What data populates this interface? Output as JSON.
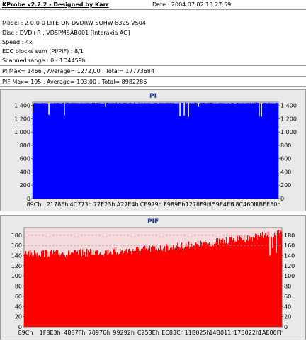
{
  "header": {
    "title": "KProbe v2.2.2 - Designed by Karr",
    "date": "Date : 2004.07.02 13:27:59"
  },
  "info": {
    "model": "Model : 2-0-0-0 LITE-ON DVDRW SOHW-832S  VS04",
    "disc": "Disc : DVD+R , VDSPMSAB001 [Interaxia AG]",
    "speed": "Speed : 4x",
    "ecc": "ECC blocks sum (PI/PIF) : 8/1",
    "range": "Scanned range : 0 - 1D4459h",
    "pi_stats": "PI Max= 1456 , Average= 1272,00 , Total= 17773684",
    "pif_stats": "PIF Max= 195 , Average= 103,00 , Total= 8982286"
  },
  "chart_data": [
    {
      "type": "bar",
      "title": "PI",
      "color": "#0000ff",
      "background": "#d9d9ef",
      "ylim": [
        0,
        1450
      ],
      "yticks": [
        0,
        200,
        400,
        600,
        800,
        1000,
        1200,
        1400
      ],
      "xticks": [
        "89Ch",
        "2178Eh",
        "4C773h",
        "77E23h",
        "A27E4h",
        "CE979h",
        "F989Eh",
        "1278F9h",
        "159E4Eh",
        "18C460h",
        "1BEE80h"
      ],
      "grid": true,
      "series": [
        {
          "base": 1440,
          "dips": [
            {
              "pos": 0.0,
              "value": 1290
            },
            {
              "pos": 0.065,
              "value": 1260
            },
            {
              "pos": 0.13,
              "value": 1250
            },
            {
              "pos": 0.295,
              "value": 1380
            },
            {
              "pos": 0.6,
              "value": 1240
            },
            {
              "pos": 0.618,
              "value": 1250
            },
            {
              "pos": 0.635,
              "value": 1230
            },
            {
              "pos": 0.675,
              "value": 1380
            },
            {
              "pos": 0.925,
              "value": 1240
            },
            {
              "pos": 0.932,
              "value": 1230
            },
            {
              "pos": 0.939,
              "value": 1240
            }
          ]
        }
      ]
    },
    {
      "type": "bar",
      "title": "PIF",
      "color": "#ff0000",
      "background": "#f4dada",
      "ylim": [
        0,
        195
      ],
      "yticks": [
        0,
        20,
        40,
        60,
        80,
        100,
        120,
        140,
        160,
        180
      ],
      "hlines": [
        160,
        180
      ],
      "xticks": [
        "89Ch",
        "1F8E3h",
        "4887Fh",
        "70976h",
        "99292h",
        "C253Eh",
        "EC83Ch",
        "11B025h",
        "14B011h",
        "17B022h",
        "1AE00Fh"
      ],
      "grid": true,
      "series": [
        {
          "trend": [
            {
              "pos": 0.0,
              "value": 150
            },
            {
              "pos": 0.2,
              "value": 150
            },
            {
              "pos": 0.4,
              "value": 155
            },
            {
              "pos": 0.6,
              "value": 163
            },
            {
              "pos": 0.8,
              "value": 175
            },
            {
              "pos": 1.0,
              "value": 190
            }
          ],
          "noise": 8,
          "spikes": [
            {
              "pos": 0.955,
              "value": 140
            },
            {
              "pos": 0.965,
              "value": 155
            },
            {
              "pos": 0.98,
              "value": 145
            }
          ]
        }
      ]
    }
  ]
}
